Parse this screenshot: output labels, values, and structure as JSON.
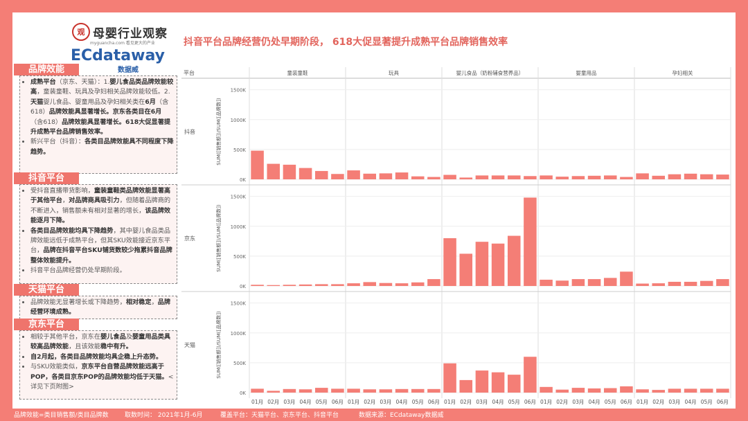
{
  "header": {
    "logo1_seal": "观",
    "logo1_name": "母婴行业观察",
    "logo1_sub": "myguancha.com 看见更大的产业",
    "logo2_ec": "ECdataway",
    "logo2_cn": "数据威",
    "headline": "抖音平台品牌经营仍处早期阶段， 618大促显著提升成熟平台品牌销售效率"
  },
  "sections": [
    {
      "title": "品牌效能",
      "items": [
        [
          [
            "b",
            "成熟平台"
          ],
          [
            "n",
            "（京东、天猫）：1."
          ],
          [
            "b",
            "婴儿食品类品牌效能较高"
          ],
          [
            "n",
            "，童装童鞋、玩具及孕妇相关品牌效能较低。2."
          ],
          [
            "b",
            "天猫"
          ],
          [
            "n",
            "婴儿食品、婴童用品及孕妇相关类在"
          ],
          [
            "b",
            "6月"
          ],
          [
            "n",
            "（含618）"
          ],
          [
            "b",
            "品牌效能具显著增长。京东各类目在6月"
          ],
          [
            "n",
            "（含618）"
          ],
          [
            "b",
            "品牌效能具显著增长。618大促显著提升成熟平台品牌销售效率。"
          ]
        ],
        [
          [
            "n",
            "新兴平台（抖音）："
          ],
          [
            "b",
            "各类目品牌效能具不同程度下降趋势。"
          ]
        ]
      ]
    },
    {
      "title": "抖音平台",
      "items": [
        [
          [
            "n",
            "受抖音直播带货影响，"
          ],
          [
            "b",
            "童装童鞋类品牌效能显著高于其他平台"
          ],
          [
            "n",
            "，"
          ],
          [
            "b",
            "对品牌商具吸引力"
          ],
          [
            "n",
            "，但随着品牌商的不断进入，销售额未有相对显著的增长，"
          ],
          [
            "b",
            "该品牌效能逐月下降。"
          ]
        ],
        [
          [
            "b",
            "各类目品牌效能均具下降趋势"
          ],
          [
            "n",
            "，其中婴儿食品类品牌效能远低于成熟平台，但其SKU效能接近京东平台，"
          ],
          [
            "b",
            "品牌在抖音平台SKU铺货数较少拖累抖音品牌整体效能提升。"
          ]
        ],
        [
          [
            "n",
            "抖音平台品牌经营仍处早期阶段。"
          ]
        ]
      ]
    },
    {
      "title": "天猫平台",
      "items": [
        [
          [
            "n",
            "品牌效能无显著增长或下降趋势，"
          ],
          [
            "b",
            "相对稳定"
          ],
          [
            "n",
            "，"
          ],
          [
            "b",
            "品牌经营环境成熟。"
          ]
        ]
      ]
    },
    {
      "title": "京东平台",
      "items": [
        [
          [
            "n",
            "相较于其他平台，京东在"
          ],
          [
            "b",
            "婴儿食品"
          ],
          [
            "n",
            "及"
          ],
          [
            "b",
            "婴童用品类具较高品牌效能"
          ],
          [
            "n",
            "，且该效能"
          ],
          [
            "b",
            "稳中有升。"
          ]
        ],
        [
          [
            "b",
            "自2月起，各类目品牌效能均具企稳上升态势。"
          ]
        ],
        [
          [
            "n",
            "与SKU效能类似，"
          ],
          [
            "b",
            "京东平台自营品牌效能远高于POP，各类目京东POP的品牌效能均低于天猫。"
          ],
          [
            "n",
            "<详见下页附图>"
          ]
        ]
      ]
    }
  ],
  "footer": {
    "note": "品牌效能=类目销售额/类目品牌数",
    "period": "取数时间：  2021年1月-6月",
    "platforms": "覆盖平台：天猫平台、京东平台、抖音平台",
    "source": "数据来源：ECdataway数据威"
  },
  "chart_data": {
    "type": "bar",
    "row_header": "平台",
    "ylabel": "SUM([销售额])/SUM([品牌数])",
    "categories": [
      "童装童鞋",
      "玩具",
      "婴儿食品（奶粉辅食营养品）",
      "婴童用品",
      "孕妇相关"
    ],
    "months": [
      "01月",
      "02月",
      "03月",
      "04月",
      "05月",
      "06月"
    ],
    "yticks": [
      0,
      500000,
      1000000,
      1500000
    ],
    "ytick_labels": [
      "0K",
      "500K",
      "1000K",
      "1500K"
    ],
    "ylim": [
      0,
      1600000
    ],
    "bar_color": "#f47e76",
    "platforms": [
      {
        "name": "抖音",
        "values": [
          [
            480000,
            260000,
            245000,
            190000,
            140000,
            90000
          ],
          [
            150000,
            95000,
            100000,
            115000,
            50000,
            40000
          ],
          [
            75000,
            30000,
            65000,
            65000,
            65000,
            55000
          ],
          [
            65000,
            45000,
            55000,
            60000,
            65000,
            40000
          ],
          [
            100000,
            60000,
            85000,
            95000,
            85000,
            80000
          ]
        ]
      },
      {
        "name": "京东",
        "values": [
          [
            20000,
            15000,
            20000,
            25000,
            30000,
            30000
          ],
          [
            45000,
            65000,
            50000,
            45000,
            60000,
            115000
          ],
          [
            800000,
            540000,
            740000,
            710000,
            840000,
            1480000
          ],
          [
            105000,
            90000,
            115000,
            115000,
            135000,
            240000
          ],
          [
            40000,
            45000,
            70000,
            70000,
            85000,
            115000
          ]
        ]
      },
      {
        "name": "天猫",
        "values": [
          [
            65000,
            30000,
            60000,
            55000,
            80000,
            65000
          ],
          [
            65000,
            55000,
            55000,
            60000,
            60000,
            60000
          ],
          [
            490000,
            210000,
            370000,
            340000,
            300000,
            600000
          ],
          [
            95000,
            50000,
            80000,
            70000,
            75000,
            105000
          ],
          [
            55000,
            45000,
            65000,
            65000,
            65000,
            65000
          ]
        ]
      }
    ]
  }
}
